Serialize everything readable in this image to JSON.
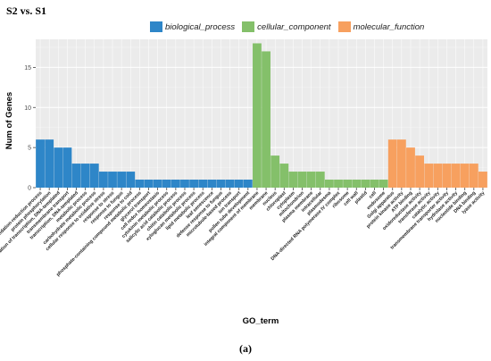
{
  "header": {
    "title": "S2 vs. S1"
  },
  "caption": "(a)",
  "colors": {
    "biological_process": "#2E86C8",
    "cellular_component": "#84C06A",
    "molecular_function": "#F7A05F"
  },
  "chart_data": {
    "type": "bar",
    "title": "S2 vs. S1",
    "xlabel": "GO_term",
    "ylabel": "Num of Genes",
    "ylim": [
      0,
      18.5
    ],
    "yticks": [
      0,
      5,
      10,
      15
    ],
    "grid": true,
    "legend_placement": "top",
    "legend": [
      {
        "key": "biological_process",
        "label": "biological_process"
      },
      {
        "key": "cellular_component",
        "label": "cellular_component"
      },
      {
        "key": "molecular_function",
        "label": "molecular_function"
      }
    ],
    "categories": [
      "oxidation-reduction process",
      "protein phosphorylation",
      "regulation of transcription, DNA-templated",
      "transmembrane transport",
      "transcription, DNA-templated",
      "metabolic process",
      "carbohydrate metabolic process",
      "cellular response to oxidative stress",
      "response to stress",
      "response to fungus",
      "response to cold",
      "phosphate-containing compound metabolic process",
      "glycerol transport",
      "cell redox homeostasis",
      "cytokinin metabolic process",
      "salicylic acid catabolic process",
      "chitin catabolic process",
      "xyloglucan metabolic process",
      "lipid metabolic process",
      "leaf senescence",
      "defense response to fungus",
      "microtubule-based process",
      "ion transport",
      "pollen tube development",
      "integral component of membrane",
      "membrane",
      "nucleus",
      "chloroplast",
      "cytoplasm",
      "mitochondrion",
      "plasma membrane",
      "intracellular",
      "plasmodesma",
      "DNA-directed RNA polymerase IV complex",
      "ribosome",
      "cell wall",
      "plastid",
      "cell",
      "endosome",
      "Golgi apparatus",
      "protein kinase activity",
      "ATP binding",
      "oxidoreductase activity",
      "transferase activity",
      "catalytic activity",
      "transmembrane transporter activity",
      "hydrolase activity",
      "nucleotide binding",
      "DNA binding",
      "lyase activity"
    ],
    "values": [
      6,
      6,
      5,
      5,
      3,
      3,
      3,
      2,
      2,
      2,
      2,
      1,
      1,
      1,
      1,
      1,
      1,
      1,
      1,
      1,
      1,
      1,
      1,
      1,
      18,
      17,
      4,
      3,
      2,
      2,
      2,
      2,
      1,
      1,
      1,
      1,
      1,
      1,
      1,
      6,
      6,
      5,
      4,
      3,
      3,
      3,
      3,
      3,
      3,
      2
    ],
    "groups": [
      "biological_process",
      "biological_process",
      "biological_process",
      "biological_process",
      "biological_process",
      "biological_process",
      "biological_process",
      "biological_process",
      "biological_process",
      "biological_process",
      "biological_process",
      "biological_process",
      "biological_process",
      "biological_process",
      "biological_process",
      "biological_process",
      "biological_process",
      "biological_process",
      "biological_process",
      "biological_process",
      "biological_process",
      "biological_process",
      "biological_process",
      "biological_process",
      "cellular_component",
      "cellular_component",
      "cellular_component",
      "cellular_component",
      "cellular_component",
      "cellular_component",
      "cellular_component",
      "cellular_component",
      "cellular_component",
      "cellular_component",
      "cellular_component",
      "cellular_component",
      "cellular_component",
      "cellular_component",
      "cellular_component",
      "molecular_function",
      "molecular_function",
      "molecular_function",
      "molecular_function",
      "molecular_function",
      "molecular_function",
      "molecular_function",
      "molecular_function",
      "molecular_function",
      "molecular_function",
      "molecular_function"
    ]
  }
}
